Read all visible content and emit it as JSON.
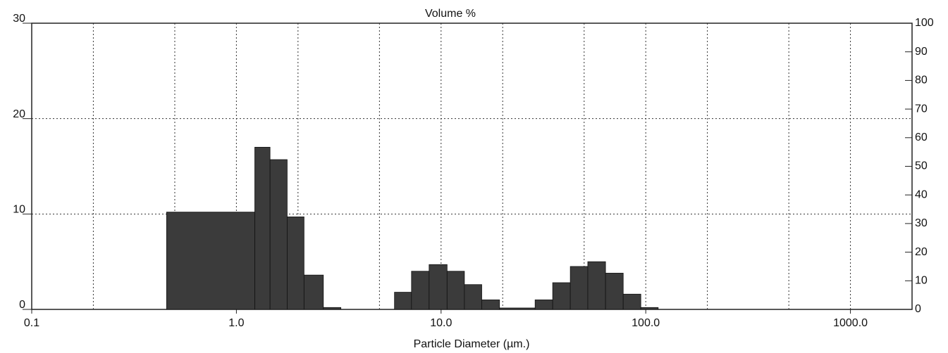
{
  "chart_data": {
    "type": "histogram",
    "title": "Volume %",
    "x_label": "Particle Diameter (µm.)",
    "x_scale": "log",
    "bins": [
      0.456,
      1.23,
      1.46,
      1.77,
      2.14,
      2.66,
      3.24,
      5.92,
      7.17,
      8.74,
      10.7,
      13.0,
      15.8,
      19.3,
      28.8,
      35.1,
      42.8,
      52.1,
      63.6,
      77.6,
      94.6,
      115
    ],
    "counts": [
      10.2,
      17,
      15.7,
      9.7,
      3.6,
      0.2,
      0,
      1.8,
      4.0,
      4.7,
      4.0,
      2.6,
      1.0,
      0.15,
      1.0,
      2.8,
      4.5,
      5.0,
      3.8,
      1.6,
      0.2
    ],
    "color": "#3b3b3b",
    "xlim": [
      0.1,
      2000
    ],
    "xticks": [
      0.1,
      {
        "value": 1,
        "label": "1.0"
      },
      {
        "value": 10,
        "label": "10.0"
      },
      {
        "value": 100,
        "label": "100.0"
      },
      {
        "value": 1000,
        "label": "1000.0"
      }
    ],
    "xgrid": [
      0.2,
      0.5,
      1,
      2,
      5,
      10,
      20,
      50,
      100,
      200,
      500,
      1000
    ],
    "ylim": [
      0,
      30
    ],
    "yticks": [
      0,
      10,
      20,
      30
    ],
    "y2lim": [
      0,
      100
    ],
    "y2ticks": [
      0,
      10,
      20,
      30,
      40,
      50,
      60,
      70,
      80,
      90,
      100
    ],
    "grid": true
  }
}
